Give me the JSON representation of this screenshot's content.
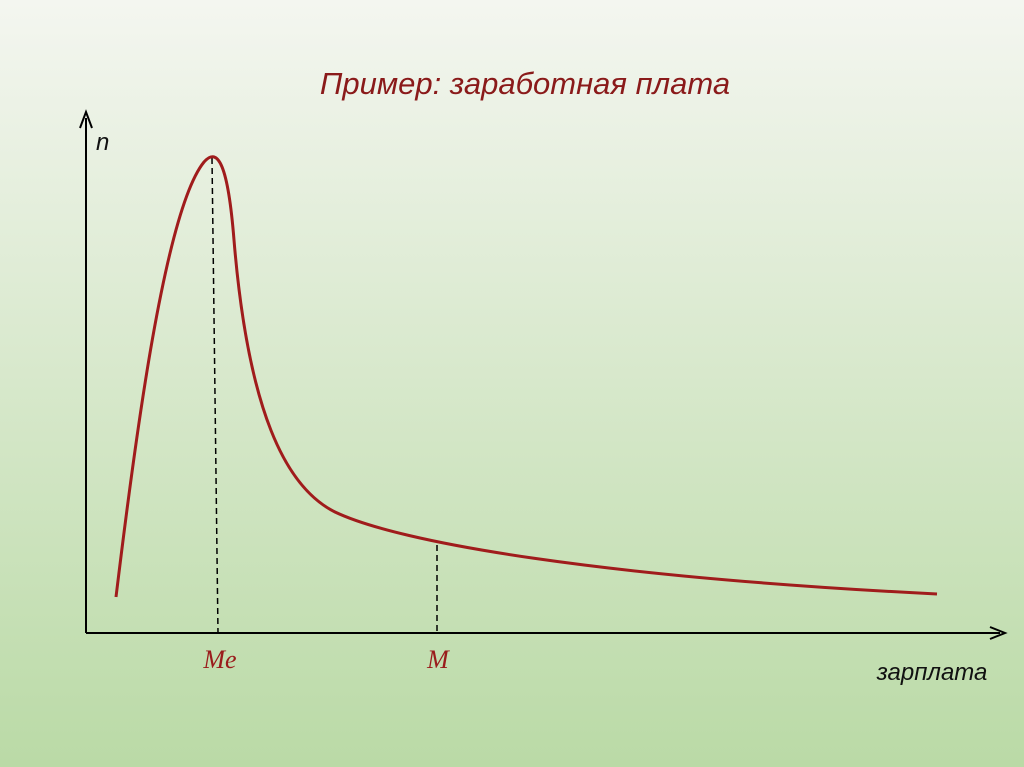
{
  "title": "Пример: заработная плата",
  "axes": {
    "y_label": "n",
    "x_label": "зарплата"
  },
  "markers": [
    {
      "label": "Me"
    },
    {
      "label": "M"
    }
  ]
}
